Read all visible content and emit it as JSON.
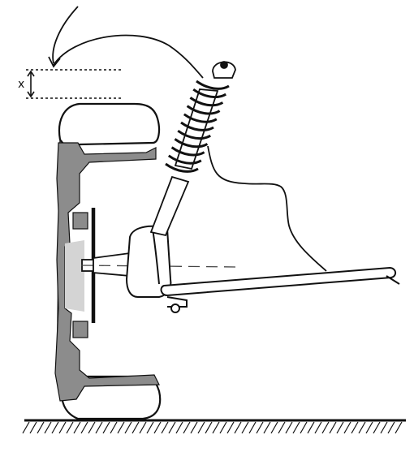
{
  "diagram": {
    "labels": {
      "travel": "x"
    },
    "colors": {
      "ink": "#111111",
      "rim": "#8c8c8c",
      "hub_light": "#d4d4d4",
      "paper": "#ffffff"
    }
  }
}
